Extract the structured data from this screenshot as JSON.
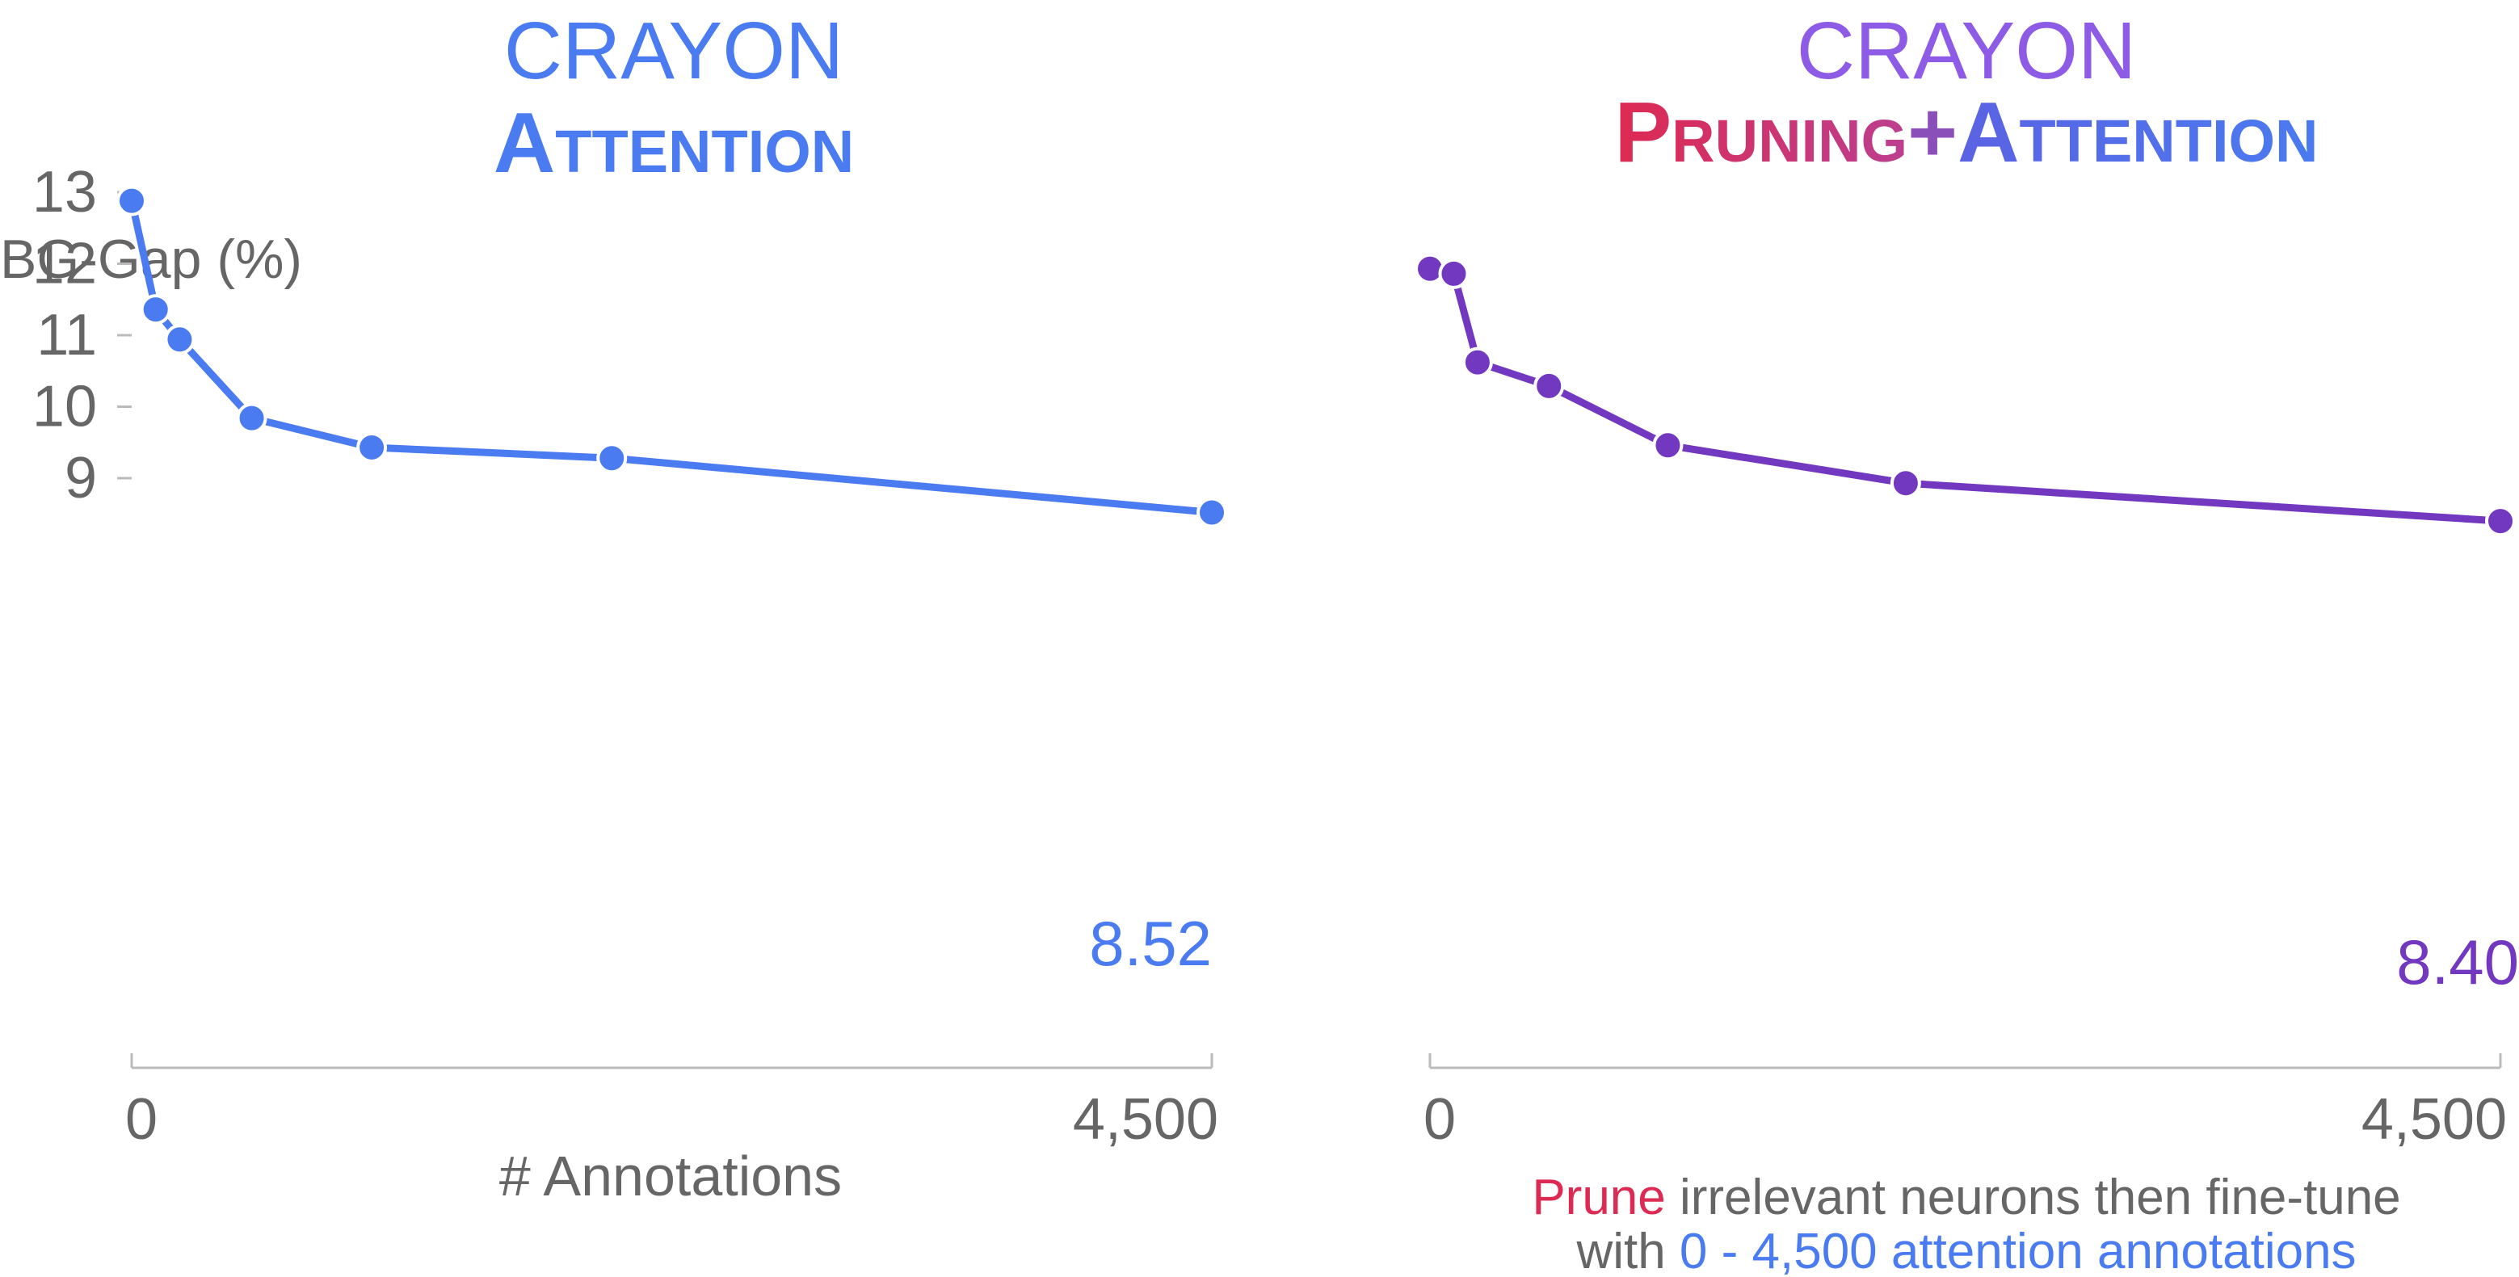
{
  "colors": {
    "blue": "#4A7BF0",
    "purple": "#7238C0",
    "violet": "#8E5BE6",
    "crimson": "#DD2A52",
    "axis_text": "#666666",
    "axis_line": "#bbbbbb"
  },
  "left_panel": {
    "title_line1": "CRAYON",
    "title_line2": "Attention",
    "ylabel": "BG-Gap (%)",
    "xlabel": "# Annotations",
    "end_label": "8.52"
  },
  "right_panel": {
    "title_line1": "CRAYON",
    "title_line2_part1": "Pruning",
    "title_line2_plus": "+",
    "title_line2_part2": "Attention",
    "caption_prune": "Prune",
    "caption_rest1": " irrelevant neurons then fine-tune",
    "caption_with": "with ",
    "caption_annotations": "0 - 4,500 attention annotations",
    "end_label": "8.40"
  },
  "chart_data": [
    {
      "type": "line",
      "title": "CRAYON Attention",
      "xlabel": "# Annotations",
      "ylabel": "BG-Gap (%)",
      "xlim": [
        0,
        4500
      ],
      "ylim": [
        8.2,
        13.1
      ],
      "x_ticks": [
        0,
        4500
      ],
      "x_tick_labels": [
        "0",
        "4,500"
      ],
      "y_ticks": [
        9,
        10,
        11,
        12,
        13
      ],
      "y_tick_labels": [
        "9",
        "10",
        "11",
        "12",
        "13"
      ],
      "series": [
        {
          "color": "#4A7BF0",
          "points": [
            {
              "x": 0,
              "y": 12.88
            },
            {
              "x": 100,
              "y": 11.36
            },
            {
              "x": 200,
              "y": 10.94
            },
            {
              "x": 500,
              "y": 9.84
            },
            {
              "x": 1000,
              "y": 9.43
            },
            {
              "x": 2000,
              "y": 9.28
            },
            {
              "x": 4500,
              "y": 8.52
            }
          ]
        }
      ]
    },
    {
      "type": "line",
      "title": "CRAYON Pruning+Attention",
      "xlim": [
        0,
        4500
      ],
      "ylim": [
        8.2,
        13.1
      ],
      "x_ticks": [
        0,
        4500
      ],
      "x_tick_labels": [
        "0",
        "4,500"
      ],
      "series": [
        {
          "color": "#7238C0",
          "points": [
            {
              "x": 0,
              "y": 11.93
            },
            {
              "x": 100,
              "y": 11.86
            },
            {
              "x": 200,
              "y": 10.62
            },
            {
              "x": 500,
              "y": 10.29
            },
            {
              "x": 1000,
              "y": 9.46
            },
            {
              "x": 2000,
              "y": 8.93
            },
            {
              "x": 4500,
              "y": 8.4
            }
          ]
        }
      ]
    }
  ]
}
